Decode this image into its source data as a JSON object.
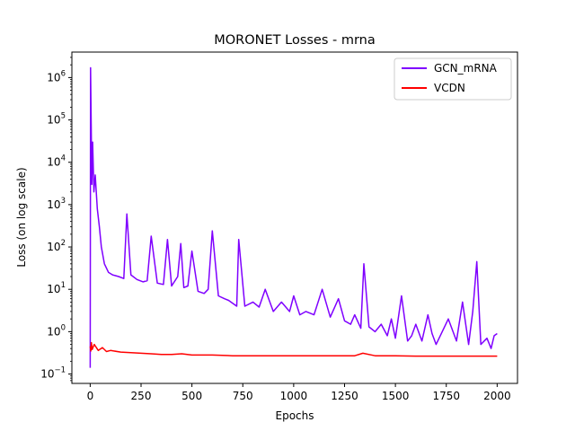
{
  "chart_data": {
    "type": "line",
    "title": "MORONET Losses - mrna",
    "xlabel": "Epochs",
    "ylabel": "Loss (on log scale)",
    "xlim": [
      -90,
      2100
    ],
    "ylim": [
      0.06,
      4000000
    ],
    "yscale": "log",
    "xticks": [
      0,
      250,
      500,
      750,
      1000,
      1250,
      1500,
      1750,
      2000
    ],
    "yticks": [
      {
        "value": 0.1,
        "base": "10",
        "exp": "−1"
      },
      {
        "value": 1,
        "base": "10",
        "exp": "0"
      },
      {
        "value": 10,
        "base": "10",
        "exp": "1"
      },
      {
        "value": 100,
        "base": "10",
        "exp": "2"
      },
      {
        "value": 1000,
        "base": "10",
        "exp": "3"
      },
      {
        "value": 10000,
        "base": "10",
        "exp": "4"
      },
      {
        "value": 100000,
        "base": "10",
        "exp": "5"
      },
      {
        "value": 1000000,
        "base": "10",
        "exp": "6"
      }
    ],
    "legend_position": "top-right",
    "series": [
      {
        "name": "GCN_mRNA",
        "color": "#7f00ff",
        "x": [
          0,
          2,
          5,
          8,
          12,
          18,
          25,
          35,
          45,
          55,
          70,
          90,
          110,
          140,
          165,
          180,
          200,
          230,
          260,
          280,
          300,
          330,
          360,
          380,
          400,
          430,
          445,
          460,
          480,
          500,
          530,
          560,
          580,
          600,
          630,
          660,
          680,
          720,
          730,
          760,
          800,
          830,
          860,
          900,
          940,
          980,
          1000,
          1030,
          1060,
          1100,
          1140,
          1180,
          1220,
          1250,
          1280,
          1300,
          1330,
          1345,
          1370,
          1400,
          1430,
          1460,
          1480,
          1500,
          1530,
          1560,
          1580,
          1600,
          1630,
          1660,
          1680,
          1700,
          1730,
          1760,
          1800,
          1830,
          1860,
          1880,
          1900,
          1920,
          1950,
          1970,
          1985,
          2000
        ],
        "y": [
          0.14,
          1700000,
          80000,
          3000,
          30000,
          2000,
          5000,
          800,
          300,
          100,
          40,
          25,
          22,
          20,
          18,
          600,
          22,
          17,
          15,
          16,
          180,
          14,
          13,
          150,
          12,
          20,
          120,
          11,
          12,
          80,
          9,
          8,
          10,
          240,
          7,
          6,
          5.5,
          4,
          150,
          4,
          5,
          3.8,
          10,
          3,
          5,
          3,
          7,
          2.5,
          3,
          2.5,
          10,
          2.2,
          6,
          1.8,
          1.5,
          2.5,
          1.2,
          40,
          1.3,
          1.0,
          1.5,
          0.8,
          2.0,
          0.7,
          7,
          0.6,
          0.8,
          1.5,
          0.6,
          2.5,
          0.9,
          0.5,
          1.0,
          2.0,
          0.6,
          5,
          0.5,
          3.0,
          45,
          0.5,
          0.7,
          0.4,
          0.8,
          0.9
        ]
      },
      {
        "name": "VCDN",
        "color": "#ff0000",
        "x": [
          0,
          3,
          6,
          10,
          20,
          40,
          60,
          80,
          100,
          150,
          200,
          250,
          300,
          350,
          400,
          450,
          500,
          600,
          700,
          800,
          900,
          1000,
          1100,
          1200,
          1300,
          1340,
          1400,
          1500,
          1600,
          1700,
          1800,
          1900,
          2000
        ],
        "y": [
          0.45,
          0.35,
          0.55,
          0.38,
          0.5,
          0.36,
          0.42,
          0.34,
          0.36,
          0.33,
          0.32,
          0.31,
          0.3,
          0.29,
          0.29,
          0.3,
          0.28,
          0.28,
          0.27,
          0.27,
          0.27,
          0.27,
          0.27,
          0.27,
          0.27,
          0.31,
          0.27,
          0.27,
          0.265,
          0.265,
          0.265,
          0.265,
          0.265
        ]
      }
    ]
  }
}
